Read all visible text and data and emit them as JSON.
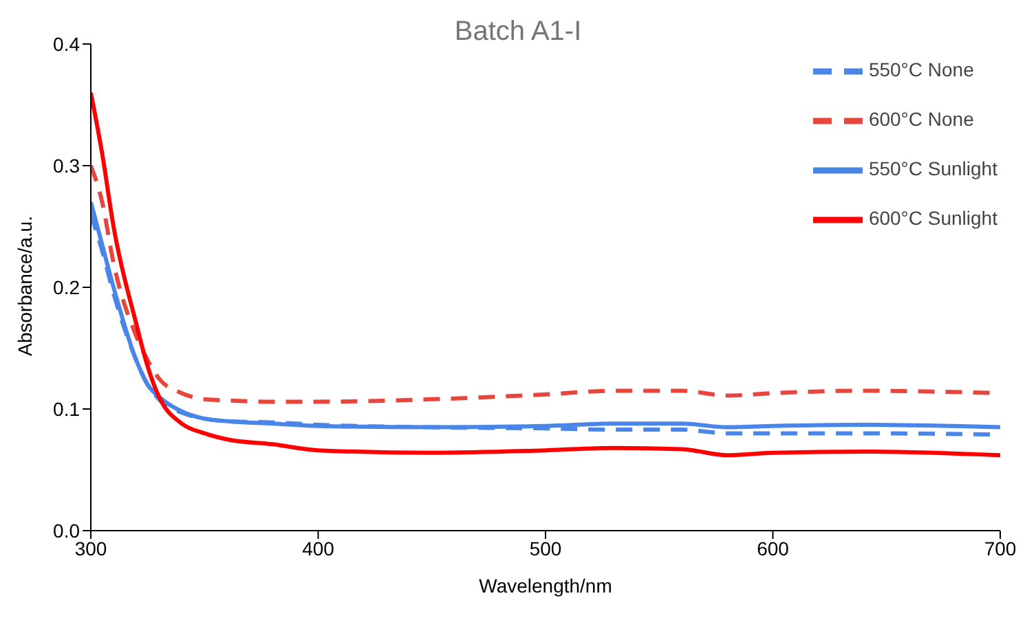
{
  "chart_data": {
    "type": "line",
    "title": "Batch A1-I",
    "xlabel": "Wavelength/nm",
    "ylabel": "Absorbance/a.u.",
    "x": [
      300,
      305,
      310,
      320,
      325,
      330,
      340,
      350,
      360,
      380,
      400,
      450,
      500,
      530,
      560,
      580,
      600,
      640,
      700
    ],
    "series": [
      {
        "name": "550°C None",
        "color": "#4a86e8",
        "line_style": "dashed",
        "values": [
          0.26,
          0.23,
          0.195,
          0.14,
          0.12,
          0.108,
          0.097,
          0.092,
          0.09,
          0.089,
          0.087,
          0.085,
          0.084,
          0.083,
          0.083,
          0.08,
          0.08,
          0.08,
          0.079
        ]
      },
      {
        "name": "600°C None",
        "color": "#e8453c",
        "line_style": "dashed",
        "values": [
          0.3,
          0.27,
          0.22,
          0.16,
          0.14,
          0.125,
          0.113,
          0.108,
          0.107,
          0.106,
          0.106,
          0.108,
          0.112,
          0.115,
          0.115,
          0.111,
          0.113,
          0.115,
          0.113
        ]
      },
      {
        "name": "550°C Sunlight",
        "color": "#4a86e8",
        "line_style": "solid",
        "values": [
          0.27,
          0.235,
          0.2,
          0.14,
          0.12,
          0.11,
          0.098,
          0.092,
          0.09,
          0.088,
          0.086,
          0.085,
          0.086,
          0.088,
          0.088,
          0.085,
          0.086,
          0.087,
          0.085
        ]
      },
      {
        "name": "600°C Sunlight",
        "color": "#ff0000",
        "line_style": "solid",
        "values": [
          0.36,
          0.31,
          0.25,
          0.17,
          0.135,
          0.11,
          0.088,
          0.08,
          0.075,
          0.071,
          0.066,
          0.064,
          0.066,
          0.068,
          0.067,
          0.062,
          0.064,
          0.065,
          0.062
        ]
      }
    ],
    "xlim": [
      300,
      700
    ],
    "xticks": [
      300,
      400,
      500,
      600,
      700
    ],
    "ylim": [
      0,
      0.4
    ],
    "yticks": [
      {
        "value": 0,
        "label": "0.0"
      },
      0.1,
      0.2,
      0.3,
      0.4
    ],
    "grid": false,
    "legend": "top right",
    "marker": "none"
  }
}
